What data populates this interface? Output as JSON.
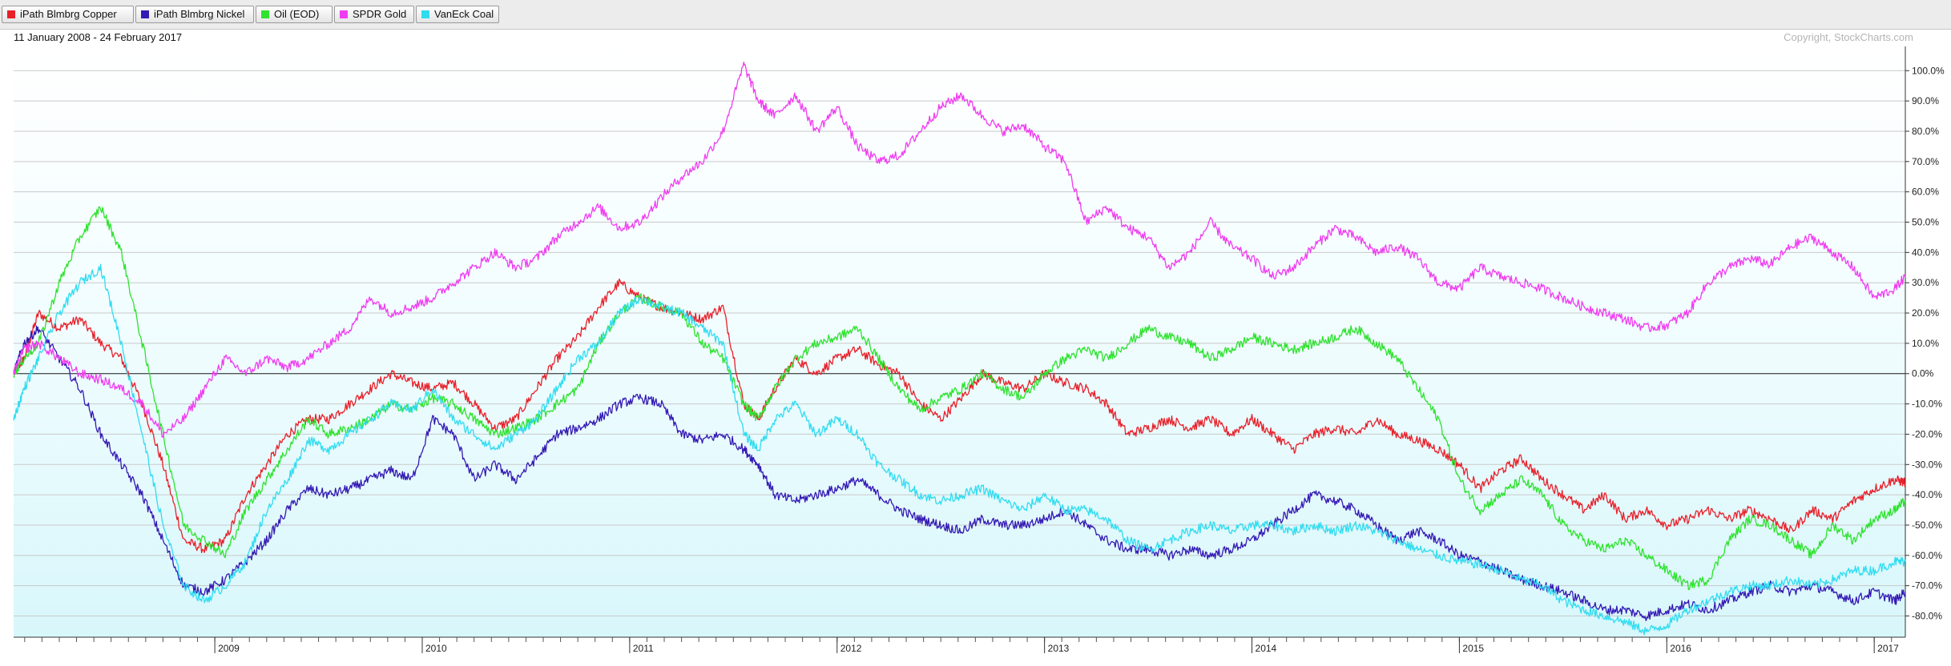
{
  "legend": [
    {
      "label": "iPath Blmbrg Copper",
      "color": "#e8202a"
    },
    {
      "label": "iPath Blmbrg Nickel",
      "color": "#3419b4"
    },
    {
      "label": "Oil (EOD)",
      "color": "#2ee22e"
    },
    {
      "label": "SPDR Gold",
      "color": "#f03cf0"
    },
    {
      "label": "VanEck Coal",
      "color": "#30dcf0"
    }
  ],
  "date_range": "11 January 2008 - 24 February 2017",
  "copyright": "Copyright, StockCharts.com",
  "chart_data": {
    "type": "line",
    "title": "",
    "xlabel": "",
    "ylabel": "",
    "x_range": [
      2008.03,
      2017.15
    ],
    "ylim": [
      -87,
      108
    ],
    "y_ticks": [
      100,
      90,
      80,
      70,
      60,
      50,
      40,
      30,
      20,
      10,
      0,
      -10,
      -20,
      -30,
      -40,
      -50,
      -60,
      -70,
      -80
    ],
    "y_tick_labels": [
      "100.0%",
      "90.0%",
      "80.0%",
      "70.0%",
      "60.0%",
      "50.0%",
      "40.0%",
      "30.0%",
      "20.0%",
      "10.0%",
      "0.0%",
      "-10.0%",
      "-20.0%",
      "-30.0%",
      "-40.0%",
      "-50.0%",
      "-60.0%",
      "-70.0%",
      "-80.0%"
    ],
    "x_year_ticks": [
      2009,
      2010,
      2011,
      2012,
      2013,
      2014,
      2015,
      2016,
      2017
    ],
    "x_tick_labels": [
      "2009",
      "2010",
      "2011",
      "2012",
      "2013",
      "2014",
      "2015",
      "2016",
      "2017"
    ],
    "grid": true,
    "zero_line": 0,
    "series": [
      {
        "name": "iPath Blmbrg Copper",
        "color": "#e8202a",
        "x": [
          2008.03,
          2008.08,
          2008.15,
          2008.25,
          2008.35,
          2008.45,
          2008.55,
          2008.65,
          2008.75,
          2008.85,
          2008.95,
          2009.05,
          2009.15,
          2009.25,
          2009.35,
          2009.45,
          2009.55,
          2009.65,
          2009.75,
          2009.85,
          2009.95,
          2010.05,
          2010.15,
          2010.25,
          2010.35,
          2010.45,
          2010.55,
          2010.65,
          2010.75,
          2010.85,
          2010.95,
          2011.05,
          2011.15,
          2011.25,
          2011.35,
          2011.45,
          2011.55,
          2011.62,
          2011.7,
          2011.8,
          2011.9,
          2012.0,
          2012.1,
          2012.2,
          2012.3,
          2012.4,
          2012.5,
          2012.6,
          2012.7,
          2012.8,
          2012.9,
          2013.0,
          2013.1,
          2013.2,
          2013.3,
          2013.4,
          2013.5,
          2013.6,
          2013.7,
          2013.8,
          2013.9,
          2014.0,
          2014.1,
          2014.2,
          2014.3,
          2014.4,
          2014.5,
          2014.6,
          2014.7,
          2014.8,
          2014.9,
          2015.0,
          2015.1,
          2015.2,
          2015.3,
          2015.4,
          2015.5,
          2015.6,
          2015.7,
          2015.8,
          2015.9,
          2016.0,
          2016.1,
          2016.2,
          2016.3,
          2016.4,
          2016.5,
          2016.6,
          2016.7,
          2016.8,
          2016.9,
          2017.0,
          2017.1,
          2017.15
        ],
        "y": [
          0,
          5,
          20,
          15,
          18,
          10,
          5,
          -10,
          -30,
          -55,
          -58,
          -55,
          -40,
          -30,
          -20,
          -15,
          -15,
          -10,
          -5,
          0,
          -3,
          -5,
          -3,
          -10,
          -18,
          -15,
          -5,
          5,
          12,
          22,
          30,
          25,
          22,
          20,
          18,
          22,
          -10,
          -15,
          -5,
          5,
          0,
          5,
          8,
          3,
          0,
          -10,
          -15,
          -8,
          0,
          -3,
          -5,
          0,
          -3,
          -5,
          -10,
          -20,
          -18,
          -15,
          -18,
          -15,
          -20,
          -15,
          -20,
          -25,
          -20,
          -18,
          -20,
          -15,
          -20,
          -22,
          -25,
          -30,
          -38,
          -32,
          -28,
          -35,
          -40,
          -45,
          -40,
          -48,
          -45,
          -50,
          -48,
          -45,
          -48,
          -45,
          -48,
          -52,
          -45,
          -48,
          -42,
          -38,
          -35,
          -36
        ]
      },
      {
        "name": "iPath Blmbrg Nickel",
        "color": "#3419b4",
        "x": [
          2008.03,
          2008.08,
          2008.15,
          2008.25,
          2008.35,
          2008.45,
          2008.55,
          2008.65,
          2008.75,
          2008.85,
          2008.95,
          2009.05,
          2009.15,
          2009.25,
          2009.35,
          2009.45,
          2009.55,
          2009.65,
          2009.75,
          2009.85,
          2009.95,
          2010.05,
          2010.15,
          2010.25,
          2010.35,
          2010.45,
          2010.55,
          2010.65,
          2010.75,
          2010.85,
          2010.95,
          2011.05,
          2011.15,
          2011.25,
          2011.35,
          2011.45,
          2011.55,
          2011.62,
          2011.7,
          2011.8,
          2011.9,
          2012.0,
          2012.1,
          2012.2,
          2012.3,
          2012.4,
          2012.5,
          2012.6,
          2012.7,
          2012.8,
          2012.9,
          2013.0,
          2013.1,
          2013.2,
          2013.3,
          2013.4,
          2013.5,
          2013.6,
          2013.7,
          2013.8,
          2013.9,
          2014.0,
          2014.1,
          2014.2,
          2014.3,
          2014.4,
          2014.5,
          2014.6,
          2014.7,
          2014.8,
          2014.9,
          2015.0,
          2015.1,
          2015.2,
          2015.3,
          2015.4,
          2015.5,
          2015.6,
          2015.7,
          2015.8,
          2015.9,
          2016.0,
          2016.1,
          2016.2,
          2016.3,
          2016.4,
          2016.5,
          2016.6,
          2016.7,
          2016.8,
          2016.9,
          2017.0,
          2017.1,
          2017.15
        ],
        "y": [
          0,
          10,
          15,
          5,
          -5,
          -20,
          -30,
          -40,
          -55,
          -70,
          -72,
          -68,
          -62,
          -55,
          -45,
          -38,
          -40,
          -38,
          -35,
          -32,
          -35,
          -15,
          -20,
          -35,
          -30,
          -35,
          -28,
          -20,
          -18,
          -15,
          -10,
          -8,
          -10,
          -20,
          -22,
          -20,
          -25,
          -30,
          -40,
          -42,
          -40,
          -38,
          -35,
          -40,
          -45,
          -48,
          -50,
          -52,
          -48,
          -50,
          -50,
          -48,
          -45,
          -50,
          -55,
          -58,
          -58,
          -60,
          -58,
          -60,
          -58,
          -55,
          -50,
          -45,
          -40,
          -42,
          -45,
          -50,
          -55,
          -52,
          -55,
          -60,
          -62,
          -65,
          -68,
          -70,
          -72,
          -75,
          -78,
          -78,
          -80,
          -78,
          -76,
          -78,
          -75,
          -72,
          -70,
          -72,
          -70,
          -72,
          -75,
          -72,
          -75,
          -72
        ]
      },
      {
        "name": "Oil (EOD)",
        "color": "#2ee22e",
        "x": [
          2008.03,
          2008.08,
          2008.15,
          2008.25,
          2008.35,
          2008.45,
          2008.55,
          2008.65,
          2008.75,
          2008.85,
          2008.95,
          2009.05,
          2009.15,
          2009.25,
          2009.35,
          2009.45,
          2009.55,
          2009.65,
          2009.75,
          2009.85,
          2009.95,
          2010.05,
          2010.15,
          2010.25,
          2010.35,
          2010.45,
          2010.55,
          2010.65,
          2010.75,
          2010.85,
          2010.95,
          2011.05,
          2011.15,
          2011.25,
          2011.35,
          2011.45,
          2011.55,
          2011.62,
          2011.7,
          2011.8,
          2011.9,
          2012.0,
          2012.1,
          2012.2,
          2012.3,
          2012.4,
          2012.5,
          2012.6,
          2012.7,
          2012.8,
          2012.9,
          2013.0,
          2013.1,
          2013.2,
          2013.3,
          2013.4,
          2013.5,
          2013.6,
          2013.7,
          2013.8,
          2013.9,
          2014.0,
          2014.1,
          2014.2,
          2014.3,
          2014.4,
          2014.5,
          2014.6,
          2014.7,
          2014.8,
          2014.9,
          2015.0,
          2015.1,
          2015.2,
          2015.3,
          2015.4,
          2015.5,
          2015.6,
          2015.7,
          2015.8,
          2015.9,
          2016.0,
          2016.1,
          2016.2,
          2016.3,
          2016.4,
          2016.5,
          2016.6,
          2016.7,
          2016.8,
          2016.9,
          2017.0,
          2017.1,
          2017.15
        ],
        "y": [
          0,
          5,
          10,
          30,
          45,
          55,
          40,
          10,
          -20,
          -50,
          -55,
          -60,
          -45,
          -35,
          -25,
          -15,
          -20,
          -18,
          -15,
          -10,
          -12,
          -8,
          -10,
          -15,
          -20,
          -18,
          -15,
          -10,
          -5,
          10,
          20,
          25,
          22,
          20,
          10,
          5,
          -10,
          -15,
          -5,
          5,
          10,
          12,
          15,
          5,
          -5,
          -12,
          -8,
          -5,
          0,
          -5,
          -8,
          0,
          5,
          8,
          5,
          10,
          15,
          12,
          10,
          5,
          8,
          12,
          10,
          8,
          10,
          12,
          15,
          10,
          5,
          -5,
          -15,
          -35,
          -45,
          -40,
          -35,
          -40,
          -50,
          -55,
          -58,
          -55,
          -60,
          -65,
          -70,
          -68,
          -55,
          -48,
          -50,
          -55,
          -60,
          -50,
          -55,
          -48,
          -45,
          -42
        ]
      },
      {
        "name": "SPDR Gold",
        "color": "#f03cf0",
        "x": [
          2008.03,
          2008.08,
          2008.15,
          2008.25,
          2008.35,
          2008.45,
          2008.55,
          2008.65,
          2008.75,
          2008.85,
          2008.95,
          2009.05,
          2009.15,
          2009.25,
          2009.35,
          2009.45,
          2009.55,
          2009.65,
          2009.75,
          2009.85,
          2009.95,
          2010.05,
          2010.15,
          2010.25,
          2010.35,
          2010.45,
          2010.55,
          2010.65,
          2010.75,
          2010.85,
          2010.95,
          2011.05,
          2011.15,
          2011.25,
          2011.35,
          2011.45,
          2011.55,
          2011.62,
          2011.7,
          2011.8,
          2011.9,
          2012.0,
          2012.1,
          2012.2,
          2012.3,
          2012.4,
          2012.5,
          2012.6,
          2012.7,
          2012.8,
          2012.9,
          2013.0,
          2013.1,
          2013.2,
          2013.3,
          2013.4,
          2013.5,
          2013.6,
          2013.7,
          2013.8,
          2013.9,
          2014.0,
          2014.1,
          2014.2,
          2014.3,
          2014.4,
          2014.5,
          2014.6,
          2014.7,
          2014.8,
          2014.9,
          2015.0,
          2015.1,
          2015.2,
          2015.3,
          2015.4,
          2015.5,
          2015.6,
          2015.7,
          2015.8,
          2015.9,
          2016.0,
          2016.1,
          2016.2,
          2016.3,
          2016.4,
          2016.5,
          2016.6,
          2016.7,
          2016.8,
          2016.9,
          2017.0,
          2017.1,
          2017.15
        ],
        "y": [
          0,
          8,
          10,
          5,
          0,
          -2,
          -5,
          -10,
          -20,
          -15,
          -5,
          5,
          0,
          5,
          2,
          5,
          10,
          15,
          25,
          20,
          22,
          25,
          30,
          35,
          40,
          35,
          38,
          45,
          50,
          55,
          48,
          50,
          58,
          65,
          70,
          80,
          102,
          90,
          85,
          92,
          80,
          88,
          75,
          70,
          72,
          80,
          88,
          92,
          85,
          80,
          82,
          75,
          70,
          50,
          55,
          48,
          45,
          35,
          40,
          50,
          42,
          38,
          32,
          35,
          42,
          48,
          45,
          40,
          42,
          38,
          30,
          28,
          35,
          32,
          30,
          28,
          25,
          22,
          20,
          18,
          15,
          16,
          20,
          30,
          35,
          38,
          36,
          42,
          45,
          40,
          35,
          25,
          28,
          32
        ]
      },
      {
        "name": "VanEck Coal",
        "color": "#30dcf0",
        "x": [
          2008.03,
          2008.08,
          2008.15,
          2008.25,
          2008.35,
          2008.45,
          2008.55,
          2008.65,
          2008.75,
          2008.85,
          2008.95,
          2009.05,
          2009.15,
          2009.25,
          2009.35,
          2009.45,
          2009.55,
          2009.65,
          2009.75,
          2009.85,
          2009.95,
          2010.05,
          2010.15,
          2010.25,
          2010.35,
          2010.45,
          2010.55,
          2010.65,
          2010.75,
          2010.85,
          2010.95,
          2011.05,
          2011.15,
          2011.25,
          2011.35,
          2011.45,
          2011.55,
          2011.62,
          2011.7,
          2011.8,
          2011.9,
          2012.0,
          2012.1,
          2012.2,
          2012.3,
          2012.4,
          2012.5,
          2012.6,
          2012.7,
          2012.8,
          2012.9,
          2013.0,
          2013.1,
          2013.2,
          2013.3,
          2013.4,
          2013.5,
          2013.6,
          2013.7,
          2013.8,
          2013.9,
          2014.0,
          2014.1,
          2014.2,
          2014.3,
          2014.4,
          2014.5,
          2014.6,
          2014.7,
          2014.8,
          2014.9,
          2015.0,
          2015.1,
          2015.2,
          2015.3,
          2015.4,
          2015.5,
          2015.6,
          2015.7,
          2015.8,
          2015.9,
          2016.0,
          2016.1,
          2016.2,
          2016.3,
          2016.4,
          2016.5,
          2016.6,
          2016.7,
          2016.8,
          2016.9,
          2017.0,
          2017.1,
          2017.15
        ],
        "y": [
          -15,
          -5,
          5,
          20,
          30,
          35,
          10,
          -20,
          -50,
          -70,
          -75,
          -70,
          -62,
          -45,
          -35,
          -22,
          -25,
          -20,
          -15,
          -10,
          -12,
          -5,
          -15,
          -20,
          -25,
          -20,
          -15,
          -5,
          5,
          10,
          20,
          25,
          22,
          20,
          15,
          10,
          -20,
          -25,
          -15,
          -10,
          -20,
          -15,
          -20,
          -30,
          -35,
          -40,
          -42,
          -40,
          -38,
          -42,
          -45,
          -40,
          -45,
          -45,
          -48,
          -55,
          -58,
          -55,
          -52,
          -50,
          -52,
          -50,
          -50,
          -52,
          -50,
          -52,
          -50,
          -52,
          -55,
          -58,
          -60,
          -62,
          -63,
          -65,
          -68,
          -70,
          -75,
          -78,
          -80,
          -82,
          -85,
          -83,
          -78,
          -75,
          -72,
          -70,
          -70,
          -68,
          -70,
          -68,
          -65,
          -65,
          -62,
          -62
        ]
      }
    ]
  }
}
